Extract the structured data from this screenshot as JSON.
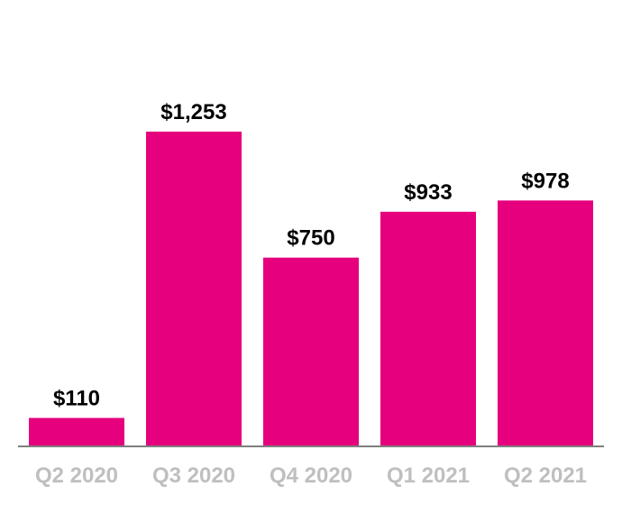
{
  "colors": {
    "bar": "#e6007e",
    "baseline": "#7f7f7f",
    "tick_label": "#bfbfbf",
    "value_label": "#000000",
    "background": "#ffffff"
  },
  "chart_data": {
    "type": "bar",
    "categories": [
      "Q2 2020",
      "Q3 2020",
      "Q4 2020",
      "Q1 2021",
      "Q2 2021"
    ],
    "values": [
      110,
      1253,
      750,
      933,
      978
    ],
    "value_labels": [
      "$110",
      "$1,253",
      "$750",
      "$933",
      "$978"
    ],
    "title": "",
    "xlabel": "",
    "ylabel": "",
    "ylim": [
      0,
      1350
    ],
    "grid": false,
    "legend": "none"
  }
}
